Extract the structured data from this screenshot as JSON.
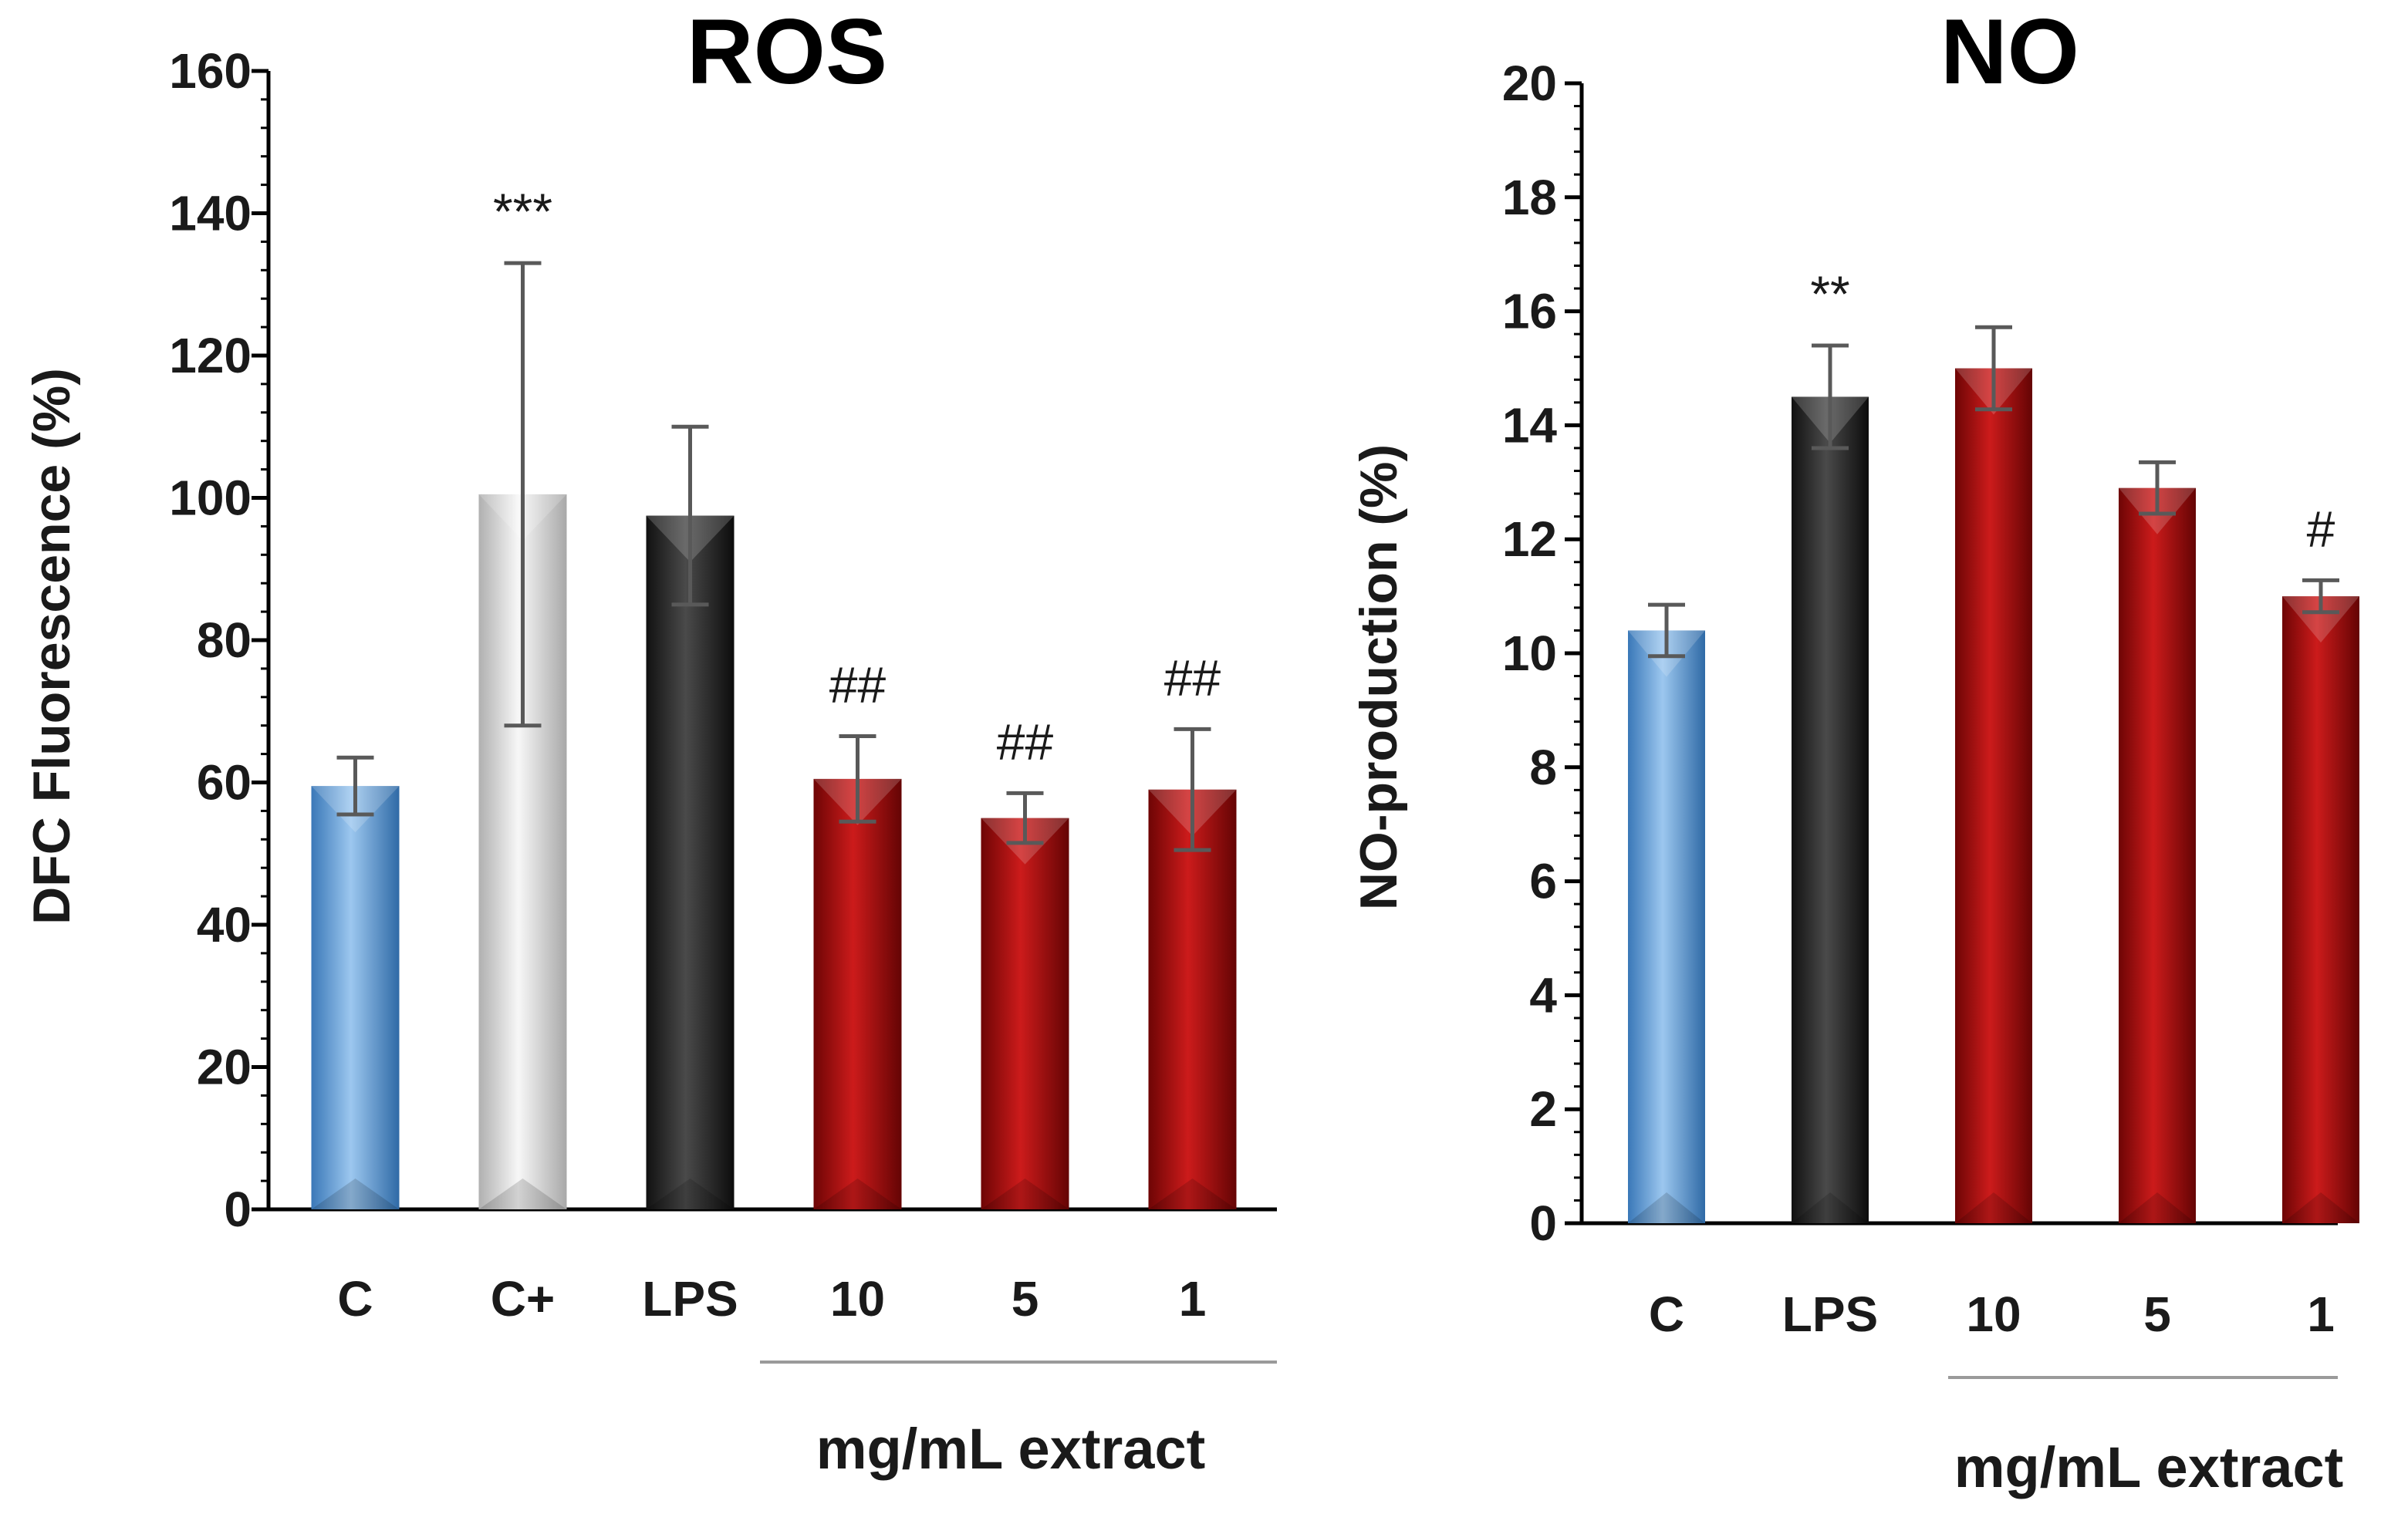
{
  "chart_data": [
    {
      "type": "bar",
      "title": "ROS",
      "ylabel": "DFC Fluorescence (%)",
      "xlabel": "",
      "ylim": [
        0,
        160
      ],
      "yticks": [
        0,
        20,
        40,
        60,
        80,
        100,
        120,
        140,
        160
      ],
      "categories": [
        "C",
        "C+",
        "LPS",
        "10",
        "5",
        "1"
      ],
      "values": [
        59.5,
        100.5,
        97.5,
        60.5,
        55,
        59
      ],
      "errors": [
        4,
        32.5,
        12.5,
        6,
        3.5,
        8.5
      ],
      "annotations": [
        "",
        "***",
        "",
        "##",
        "##",
        "##"
      ],
      "bar_colors": [
        "#5b9bd5",
        "#d9d9d9",
        "#262626",
        "#a50f0f",
        "#a50f0f",
        "#a50f0f"
      ],
      "group_label": "mg/mL extract",
      "group_span": [
        "10",
        "1"
      ]
    },
    {
      "type": "bar",
      "title": "NO",
      "ylabel": "NO-production (%)",
      "xlabel": "",
      "ylim": [
        0,
        20
      ],
      "yticks": [
        0,
        2,
        4,
        6,
        8,
        10,
        12,
        14,
        16,
        18,
        20
      ],
      "categories": [
        "C",
        "LPS",
        "10",
        "5",
        "1"
      ],
      "values": [
        10.4,
        14.5,
        15,
        12.9,
        11
      ],
      "errors": [
        0.45,
        0.9,
        0.72,
        0.45,
        0.28
      ],
      "annotations": [
        "",
        "**",
        "",
        "",
        "#"
      ],
      "bar_colors": [
        "#5b9bd5",
        "#262626",
        "#a50f0f",
        "#a50f0f",
        "#a50f0f"
      ],
      "group_label": "mg/mL extract",
      "group_span": [
        "10",
        "1"
      ]
    }
  ]
}
